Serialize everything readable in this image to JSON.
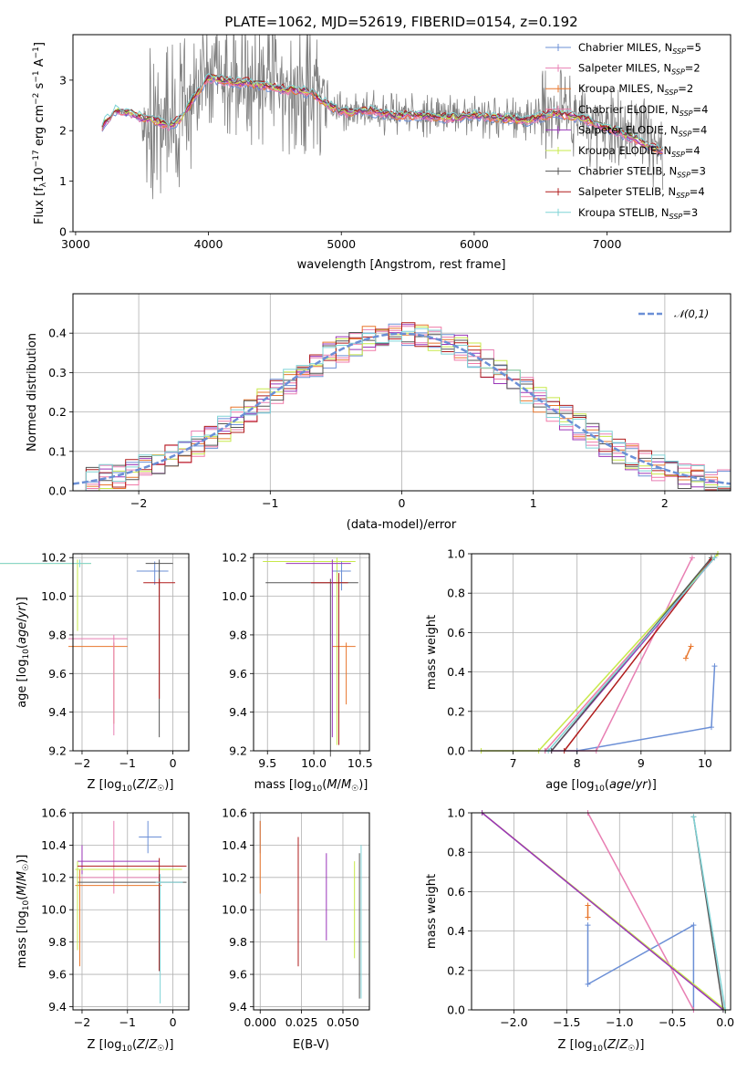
{
  "figure_title": "PLATE=1062, MJD=52619, FIBERID=0154, z=0.192",
  "series_styles": [
    {
      "name": "Chabrier MILES, N_SSP=5",
      "color": "#6b8fd6"
    },
    {
      "name": "Salpeter MILES, N_SSP=2",
      "color": "#e87fb3"
    },
    {
      "name": "Kroupa MILES, N_SSP=2",
      "color": "#e8762c"
    },
    {
      "name": "Chabrier ELODIE, N_SSP=4",
      "color": "#f07aa8"
    },
    {
      "name": "Salpeter ELODIE, N_SSP=4",
      "color": "#9a35b8"
    },
    {
      "name": "Kroupa ELODIE, N_SSP=4",
      "color": "#c7e84a"
    },
    {
      "name": "Chabrier STELIB, N_SSP=3",
      "color": "#555555"
    },
    {
      "name": "Salpeter STELIB, N_SSP=4",
      "color": "#b01c1c"
    },
    {
      "name": "Kroupa STELIB, N_SSP=3",
      "color": "#7fd3d6"
    }
  ],
  "chart_data": [
    {
      "id": "spectrum",
      "type": "line",
      "title": "PLATE=1062, MJD=52619, FIBERID=0154, z=0.192",
      "xlabel": "wavelength [Angstrom, rest frame]",
      "ylabel": "Flux [f_λ 10^-17 erg cm^-2 s^-1 A^-1]",
      "xlim": [
        2980,
        7930
      ],
      "ylim": [
        0,
        3.9
      ],
      "xticks": [
        3000,
        4000,
        5000,
        6000,
        7000
      ],
      "yticks": [
        0,
        1,
        2,
        3
      ],
      "legend": {
        "position": "right",
        "entries": [
          {
            "prefix": "Chabrier MILES, N",
            "sub": "SSP",
            "suffix": "=5"
          },
          {
            "prefix": "Salpeter MILES, N",
            "sub": "SSP",
            "suffix": "=2"
          },
          {
            "prefix": "Kroupa MILES, N",
            "sub": "SSP",
            "suffix": "=2"
          },
          {
            "prefix": "Chabrier ELODIE, N",
            "sub": "SSP",
            "suffix": "=4"
          },
          {
            "prefix": "Salpeter ELODIE, N",
            "sub": "SSP",
            "suffix": "=4"
          },
          {
            "prefix": "Kroupa ELODIE, N",
            "sub": "SSP",
            "suffix": "=4"
          },
          {
            "prefix": "Chabrier STELIB, N",
            "sub": "SSP",
            "suffix": "=3"
          },
          {
            "prefix": "Salpeter STELIB, N",
            "sub": "SSP",
            "suffix": "=4"
          },
          {
            "prefix": "Kroupa STELIB, N",
            "sub": "SSP",
            "suffix": "=3"
          }
        ]
      },
      "continuum": {
        "x": [
          3200,
          3300,
          3400,
          3500,
          3600,
          3700,
          3800,
          3900,
          4000,
          4100,
          4200,
          4300,
          4400,
          4500,
          4600,
          4700,
          4800,
          4900,
          5000,
          5200,
          5400,
          5600,
          5800,
          6000,
          6200,
          6400,
          6600,
          6800,
          7000,
          7200,
          7400
        ],
        "y": [
          2.1,
          2.4,
          2.35,
          2.25,
          2.2,
          2.1,
          2.25,
          2.7,
          3.05,
          3.0,
          2.95,
          2.95,
          2.9,
          2.85,
          2.8,
          2.8,
          2.7,
          2.5,
          2.35,
          2.4,
          2.3,
          2.3,
          2.25,
          2.3,
          2.25,
          2.2,
          2.35,
          2.25,
          2.05,
          1.85,
          1.6
        ]
      }
    },
    {
      "id": "residuals",
      "type": "step",
      "xlabel": "(data-model)/error",
      "ylabel": "Normed distribution",
      "xlim": [
        -2.5,
        2.5
      ],
      "ylim": [
        0,
        0.5
      ],
      "xticks": [
        -2,
        -1,
        0,
        1,
        2
      ],
      "yticks": [
        0.0,
        0.1,
        0.2,
        0.3,
        0.4
      ],
      "legend": {
        "position": "top-right",
        "label": "𝒩(0,1)"
      },
      "bin_width": 0.1,
      "reference_curve": "N(0,1)"
    },
    {
      "id": "age-vs-Z",
      "type": "errorbar",
      "xlabel": "Z [log10(Z/Z☉)]",
      "ylabel": "age [log10(age/yr)]",
      "xlim": [
        -2.2,
        0.35
      ],
      "ylim": [
        9.2,
        10.22
      ],
      "xticks": [
        -2,
        -1,
        0
      ],
      "yticks": [
        9.2,
        9.4,
        9.6,
        9.8,
        10.0,
        10.2
      ]
    },
    {
      "id": "age-vs-mass",
      "type": "errorbar",
      "xlabel": "mass [log10(M/M☉)]",
      "ylabel": "",
      "xlim": [
        9.35,
        10.6
      ],
      "ylim": [
        9.2,
        10.22
      ],
      "xticks": [
        9.5,
        10.0,
        10.5
      ],
      "yticks": [
        9.2,
        9.4,
        9.6,
        9.8,
        10.0,
        10.2
      ]
    },
    {
      "id": "weight-vs-age",
      "type": "line",
      "xlabel": "age [log10(age/yr)]",
      "ylabel": "mass weight",
      "xlim": [
        6.35,
        10.4
      ],
      "ylim": [
        0,
        1
      ],
      "xticks": [
        7,
        8,
        9,
        10
      ],
      "yticks": [
        0.0,
        0.2,
        0.4,
        0.6,
        0.8,
        1.0
      ]
    },
    {
      "id": "mass-vs-Z",
      "type": "errorbar",
      "xlabel": "Z [log10(Z/Z☉)]",
      "ylabel": "mass [log10(M/M☉)]",
      "xlim": [
        -2.2,
        0.35
      ],
      "ylim": [
        9.38,
        10.6
      ],
      "xticks": [
        -2,
        -1,
        0
      ],
      "yticks": [
        9.4,
        9.6,
        9.8,
        10.0,
        10.2,
        10.4,
        10.6
      ]
    },
    {
      "id": "mass-vs-EBV",
      "type": "errorbar",
      "xlabel": "E(B-V)",
      "ylabel": "",
      "xlim": [
        -0.004,
        0.066
      ],
      "ylim": [
        9.38,
        10.6
      ],
      "xticks": [
        0.0,
        0.025,
        0.05
      ],
      "xticklabels": [
        "0.000",
        "0.025",
        "0.050"
      ],
      "yticks": [
        9.4,
        9.6,
        9.8,
        10.0,
        10.2,
        10.4,
        10.6
      ]
    },
    {
      "id": "weight-vs-Z",
      "type": "line",
      "xlabel": "Z [log10(Z/Z☉)]",
      "ylabel": "mass weight",
      "xlim": [
        -2.4,
        0.05
      ],
      "ylim": [
        0,
        1
      ],
      "xticks": [
        -2.0,
        -1.5,
        -1.0,
        -0.5,
        0.0
      ],
      "yticks": [
        0.0,
        0.2,
        0.4,
        0.6,
        0.8,
        1.0
      ]
    }
  ]
}
